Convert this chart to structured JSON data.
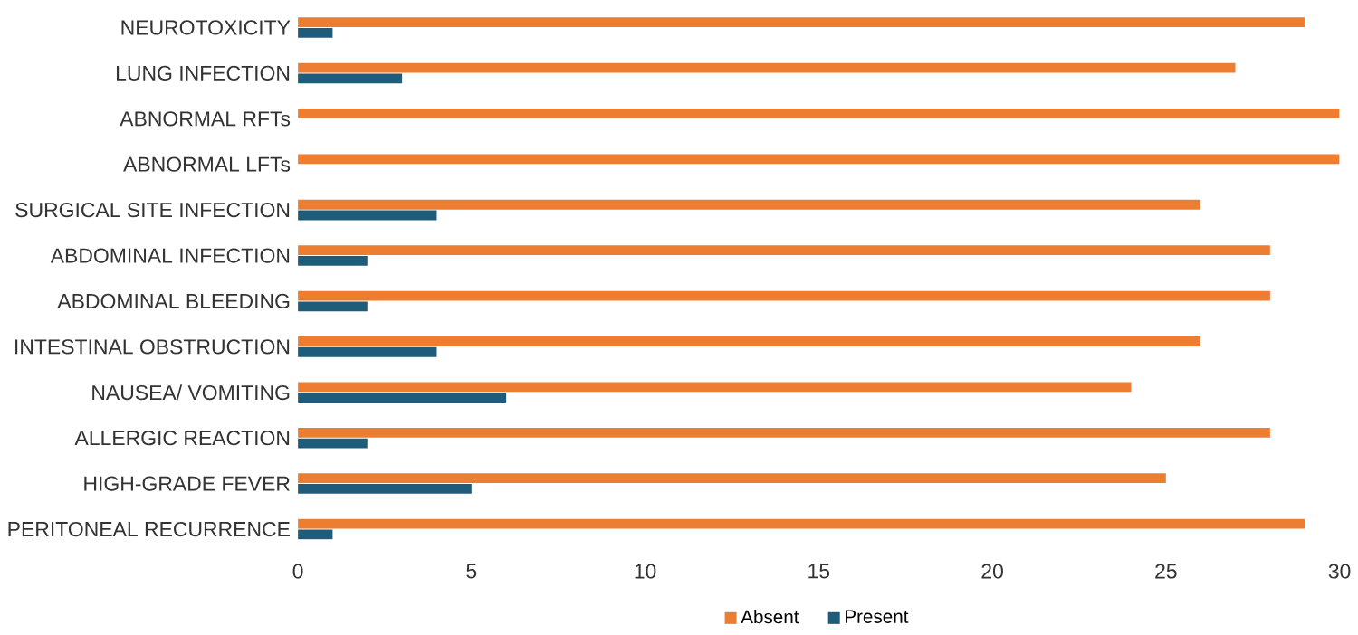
{
  "chart_data": {
    "type": "bar",
    "orientation": "horizontal",
    "categories": [
      "NEUROTOXICITY",
      "LUNG INFECTION",
      "ABNORMAL RFTs",
      "ABNORMAL LFTs",
      "SURGICAL SITE INFECTION",
      "ABDOMINAL INFECTION",
      "ABDOMINAL BLEEDING",
      "INTESTINAL OBSTRUCTION",
      "NAUSEA/ VOMITING",
      "ALLERGIC REACTION",
      "HIGH-GRADE FEVER",
      "PERITONEAL RECURRENCE"
    ],
    "series": [
      {
        "name": "Absent",
        "color": "#ED7D31",
        "values": [
          29,
          27,
          30,
          30,
          26,
          28,
          28,
          26,
          24,
          28,
          25,
          29
        ]
      },
      {
        "name": "Present",
        "color": "#1F5C7A",
        "values": [
          1,
          3,
          0,
          0,
          4,
          2,
          2,
          4,
          6,
          2,
          5,
          1
        ]
      }
    ],
    "xlim": [
      0,
      30
    ],
    "xticks": [
      0,
      5,
      10,
      15,
      20,
      25,
      30
    ],
    "grid": false,
    "legend": "bottom"
  }
}
